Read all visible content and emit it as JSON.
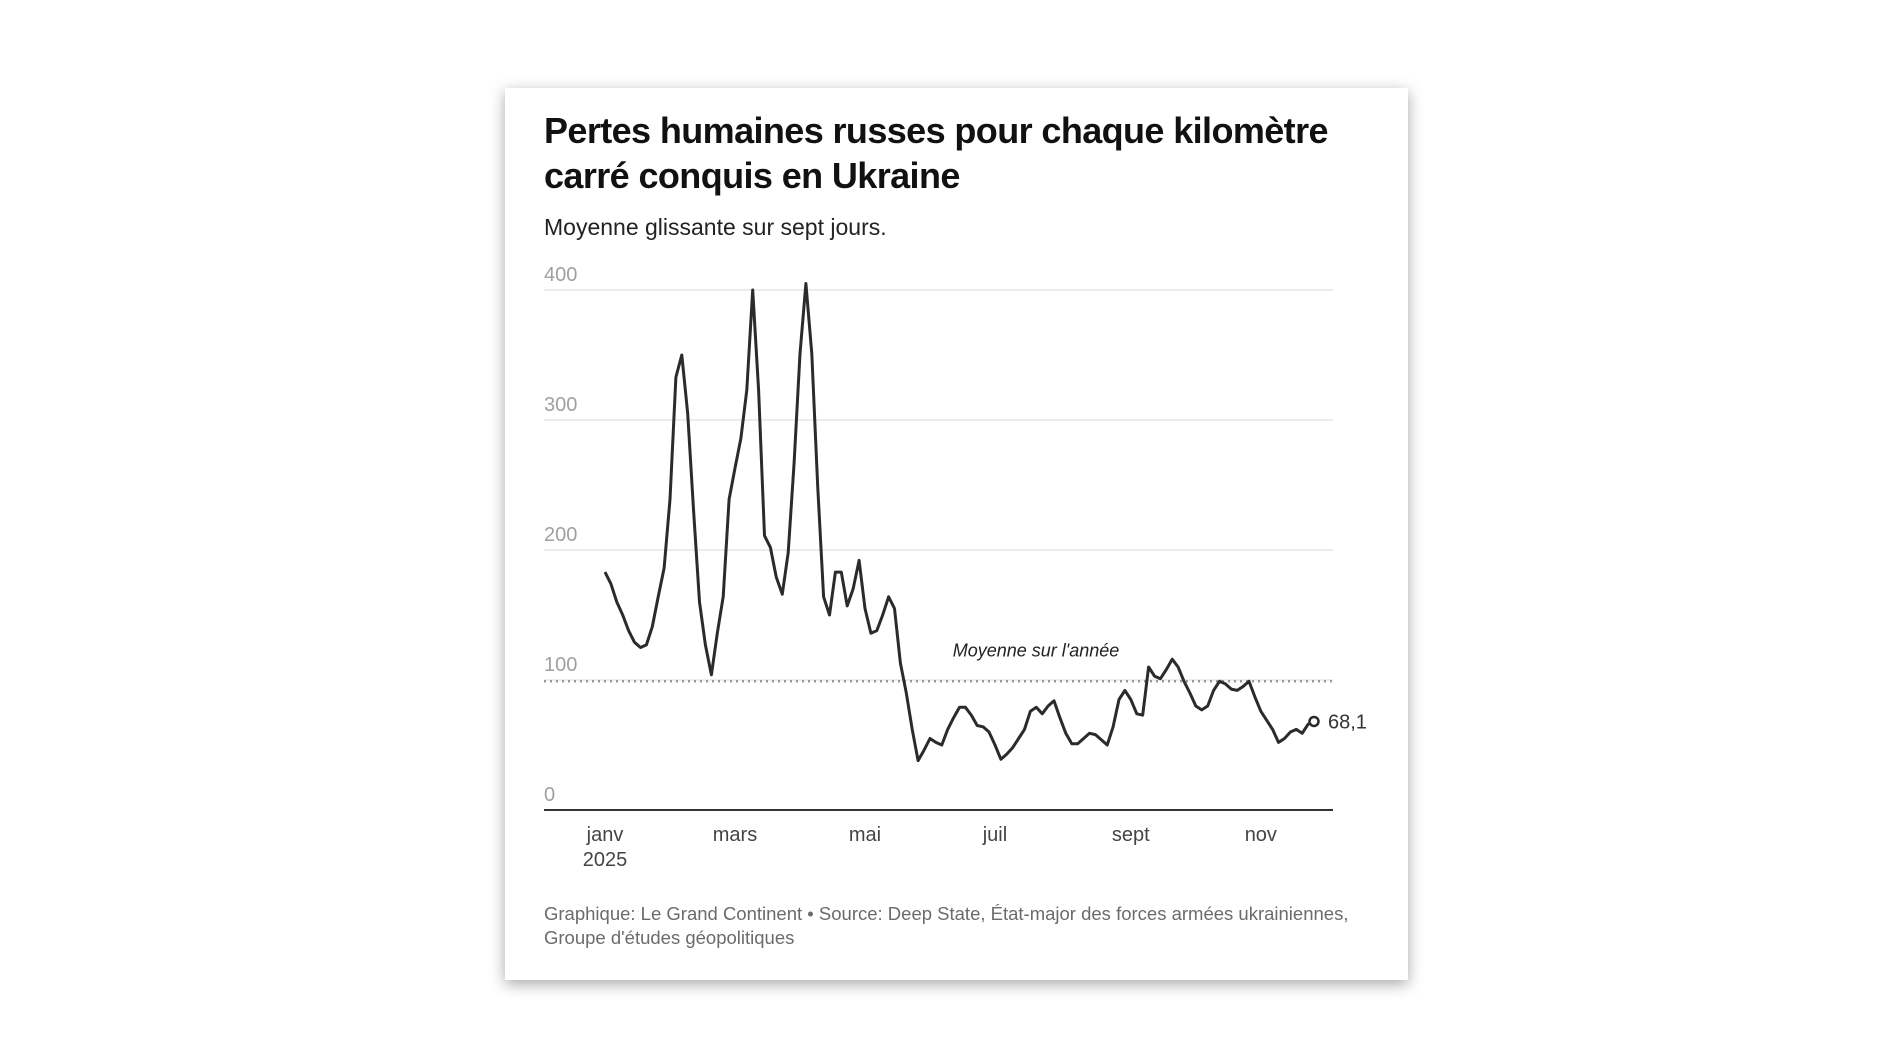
{
  "chart_data": {
    "type": "line",
    "title": "Pertes humaines russes pour chaque kilomètre carré conquis en Ukraine",
    "subtitle": "Moyenne glissante sur sept jours.",
    "source": "Graphique: Le Grand Continent • Source: Deep State, État-major des forces armées ukrainiennes, Groupe d'études géopolitiques",
    "categories": [
      "janv",
      null,
      null,
      null,
      null,
      null,
      null,
      null,
      null,
      null,
      null,
      null,
      null,
      null,
      null,
      null,
      null,
      null,
      null,
      null,
      null,
      null,
      "mars",
      null,
      null,
      null,
      null,
      null,
      null,
      null,
      null,
      null,
      null,
      null,
      null,
      null,
      null,
      null,
      null,
      null,
      null,
      null,
      null,
      null,
      "mai",
      null,
      null,
      null,
      null,
      null,
      null,
      null,
      null,
      null,
      null,
      null,
      null,
      null,
      null,
      null,
      null,
      null,
      null,
      null,
      null,
      null,
      "juil",
      null,
      null,
      null,
      null,
      null,
      null,
      null,
      null,
      null,
      null,
      null,
      null,
      null,
      null,
      null,
      null,
      null,
      null,
      null,
      null,
      null,
      null,
      "sept",
      null,
      null,
      null,
      null,
      null,
      null,
      null,
      null,
      null,
      null,
      null,
      null,
      null,
      null,
      null,
      null,
      null,
      null,
      null,
      null,
      null,
      "nov",
      null,
      null,
      null,
      null,
      null,
      null,
      null,
      null,
      null
    ],
    "category_sublabel": "2025",
    "series": [
      {
        "color": "#2b2b2b",
        "values": [
          183,
          174,
          160,
          150,
          138,
          129,
          125,
          127,
          141,
          164,
          186,
          239,
          333,
          350,
          305,
          230,
          160,
          127,
          104,
          136,
          164,
          239,
          263,
          286,
          323,
          400,
          323,
          211,
          202,
          179,
          166,
          198,
          267,
          351,
          405,
          351,
          249,
          164,
          150,
          183,
          183,
          157,
          170,
          192,
          155,
          136,
          138,
          150,
          164,
          155,
          113,
          90,
          62,
          38,
          46,
          55,
          52,
          50,
          62,
          71,
          79,
          79,
          73,
          65,
          64,
          60,
          50,
          39,
          43,
          48,
          55,
          62,
          76,
          79,
          74,
          80,
          84,
          71,
          59,
          51,
          51,
          55,
          59,
          58,
          54,
          50,
          64,
          85,
          92,
          85,
          74,
          73,
          110,
          103,
          101,
          108,
          116,
          110,
          99,
          90,
          80,
          77,
          80,
          92,
          99,
          97,
          93,
          92,
          95,
          99,
          87,
          76,
          69,
          62,
          52,
          55,
          60,
          62,
          59,
          66,
          68.1
        ],
        "value_labels": [
          null,
          null,
          null,
          null,
          null,
          null,
          null,
          null,
          null,
          null,
          null,
          null,
          null,
          null,
          null,
          null,
          null,
          null,
          null,
          null,
          null,
          null,
          null,
          null,
          null,
          null,
          null,
          null,
          null,
          null,
          null,
          null,
          null,
          null,
          null,
          null,
          null,
          null,
          null,
          null,
          null,
          null,
          null,
          null,
          null,
          null,
          null,
          null,
          null,
          null,
          null,
          null,
          null,
          null,
          null,
          null,
          null,
          null,
          null,
          null,
          null,
          null,
          null,
          null,
          null,
          null,
          null,
          null,
          null,
          null,
          null,
          null,
          null,
          null,
          null,
          null,
          null,
          null,
          null,
          null,
          null,
          null,
          null,
          null,
          null,
          null,
          null,
          null,
          null,
          null,
          null,
          null,
          null,
          null,
          null,
          null,
          null,
          null,
          null,
          null,
          null,
          null,
          null,
          null,
          null,
          null,
          null,
          null,
          null,
          null,
          null,
          null,
          null,
          null,
          null,
          null,
          null,
          null,
          null,
          null,
          "68,1"
        ]
      }
    ],
    "reference_line": {
      "value": 99,
      "label": "Moyenne sur l'année"
    },
    "ylim": [
      0,
      400
    ],
    "yticks": [
      0,
      100,
      200,
      300,
      400
    ],
    "grid": true
  }
}
